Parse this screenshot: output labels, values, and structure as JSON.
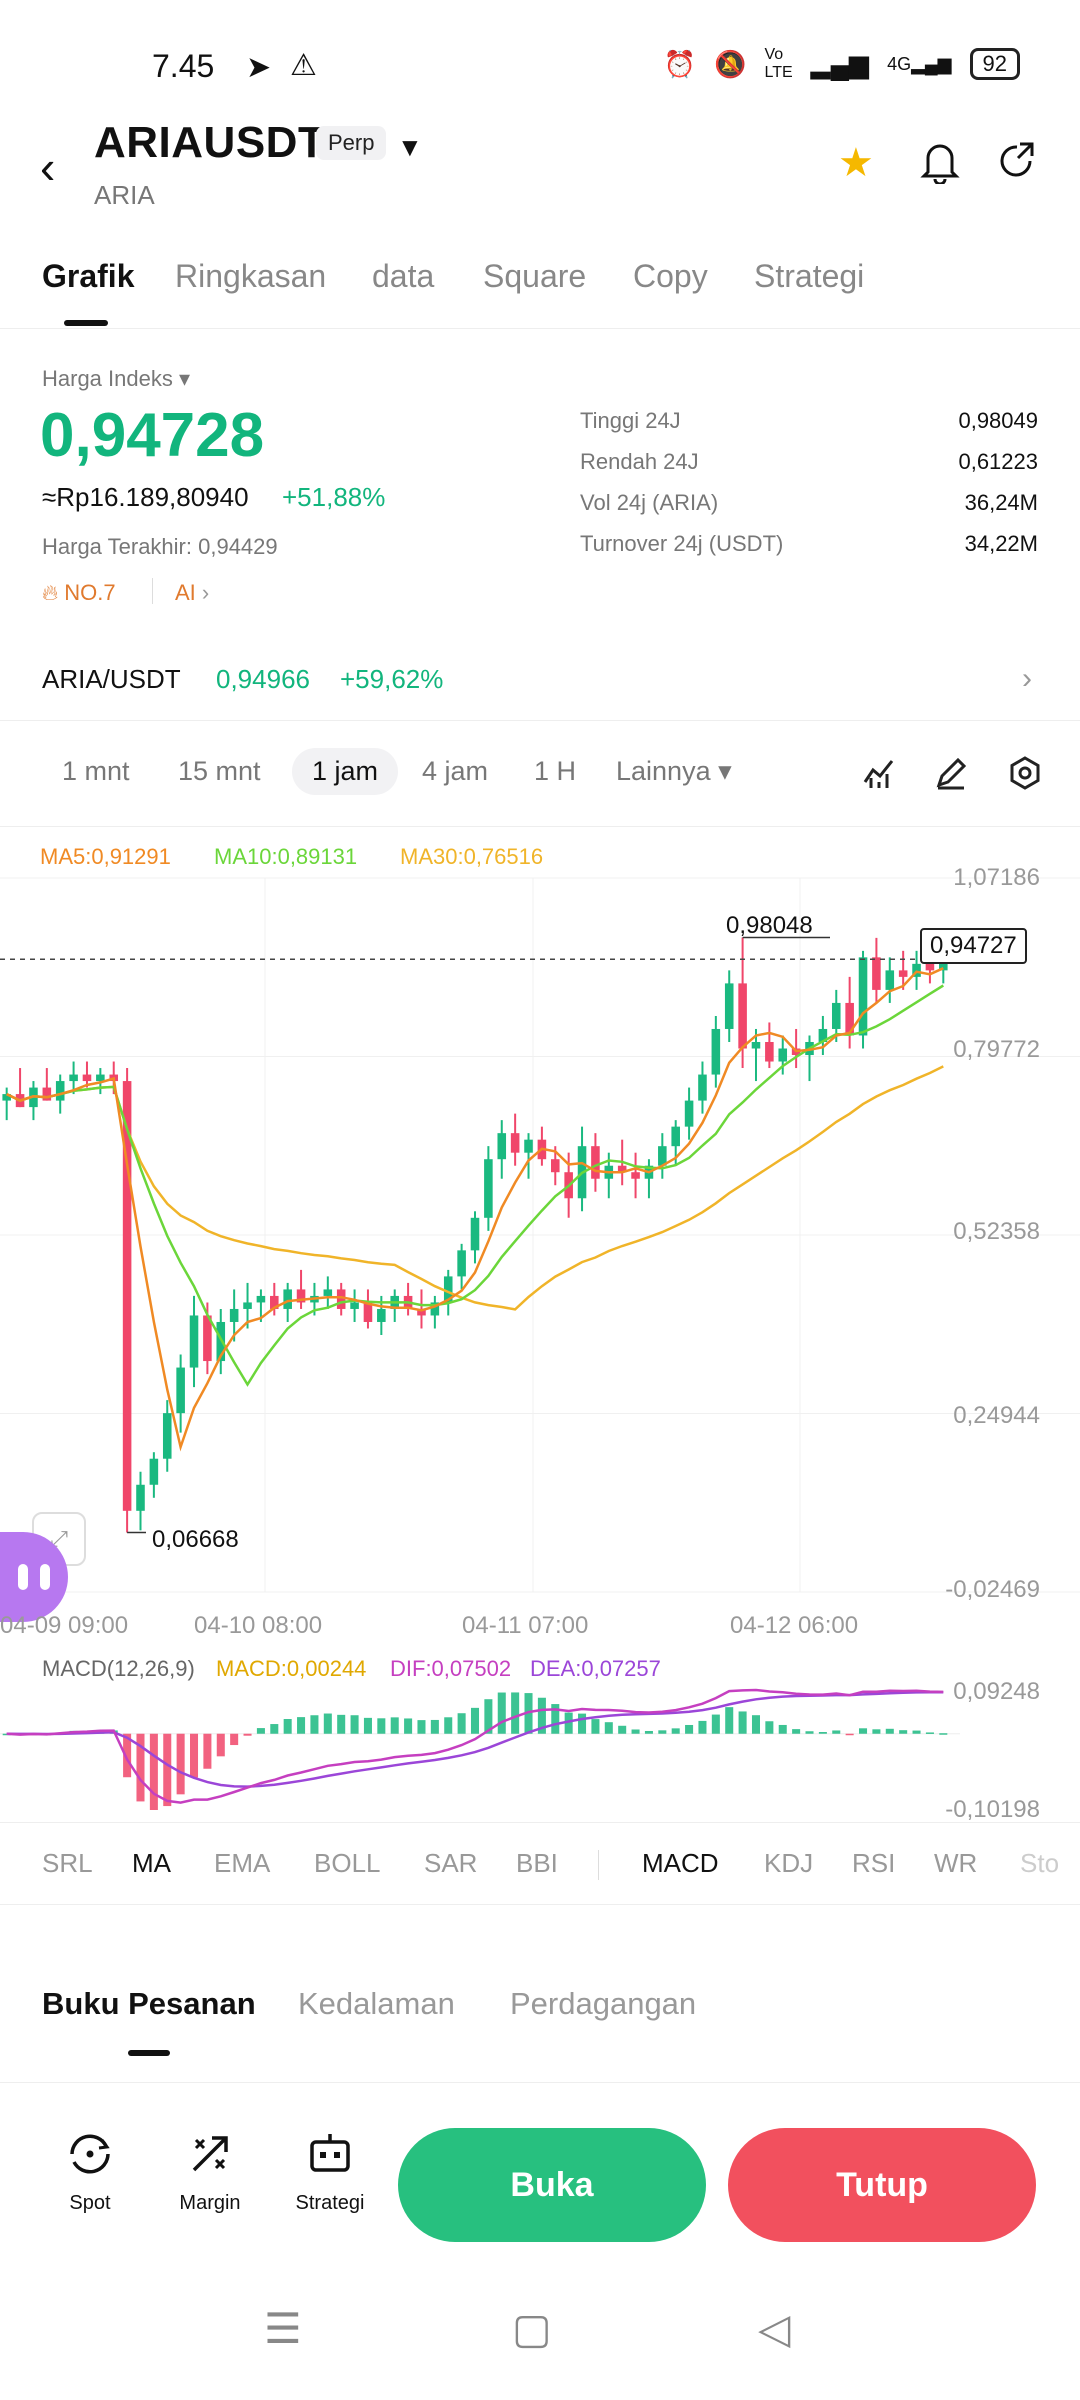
{
  "status_bar": {
    "time": "7.45",
    "battery": "92"
  },
  "header": {
    "symbol": "ARIAUSDT",
    "contract_type": "Perp",
    "base": "ARIA"
  },
  "tabs": [
    "Grafik",
    "Ringkasan",
    "data",
    "Square",
    "Copy",
    "Strategi"
  ],
  "price": {
    "label": "Harga Indeks",
    "value": "0,94728",
    "approx_idr": "≈Rp16.189,80940",
    "change_pct": "+51,88%",
    "last_price": "Harga Terakhir: 0,94429",
    "rank": "NO.7",
    "ai": "AI"
  },
  "stats": [
    {
      "label": "Tinggi 24J",
      "value": "0,98049"
    },
    {
      "label": "Rendah 24J",
      "value": "0,61223"
    },
    {
      "label": "Vol 24j (ARIA)",
      "value": "36,24M"
    },
    {
      "label": "Turnover 24j (USDT)",
      "value": "34,22M"
    }
  ],
  "spot_pair": {
    "pair": "ARIA/USDT",
    "price": "0,94966",
    "change": "+59,62%"
  },
  "timeframes": [
    "1 mnt",
    "15 mnt",
    "1 jam",
    "4 jam",
    "1 H",
    "Lainnya"
  ],
  "active_timeframe": "1 jam",
  "ma_legend": {
    "ma5": "MA5:0,91291",
    "ma10": "MA10:0,89131",
    "ma30": "MA30:0,76516"
  },
  "colors": {
    "up": "#1ab980",
    "down": "#f0466a",
    "ma5": "#f08a24",
    "ma10": "#6bd63a",
    "ma30": "#f0b429",
    "dif": "#c53fc0",
    "dea": "#9b46d8"
  },
  "chart_data": {
    "type": "candlestick",
    "x_ticks": [
      "04-09 09:00",
      "04-10 08:00",
      "04-11 07:00",
      "04-12 06:00"
    ],
    "y_ticks": [
      "1,07186",
      "0,79772",
      "0,52358",
      "0,24944",
      "-0,02469"
    ],
    "ylim": [
      -0.02469,
      1.07186
    ],
    "current_price_label": "0,94727",
    "high_label": "0,98048",
    "low_label": "0,06668",
    "candles": [
      [
        0.73,
        0.75,
        0.7,
        0.74
      ],
      [
        0.74,
        0.78,
        0.72,
        0.72
      ],
      [
        0.72,
        0.76,
        0.7,
        0.75
      ],
      [
        0.75,
        0.78,
        0.73,
        0.73
      ],
      [
        0.73,
        0.77,
        0.71,
        0.76
      ],
      [
        0.76,
        0.79,
        0.74,
        0.77
      ],
      [
        0.77,
        0.79,
        0.75,
        0.76
      ],
      [
        0.76,
        0.78,
        0.74,
        0.77
      ],
      [
        0.77,
        0.79,
        0.74,
        0.76
      ],
      [
        0.76,
        0.78,
        0.06668,
        0.1
      ],
      [
        0.1,
        0.16,
        0.07,
        0.14
      ],
      [
        0.14,
        0.19,
        0.12,
        0.18
      ],
      [
        0.18,
        0.27,
        0.16,
        0.25
      ],
      [
        0.25,
        0.34,
        0.22,
        0.32
      ],
      [
        0.32,
        0.43,
        0.29,
        0.4
      ],
      [
        0.4,
        0.42,
        0.31,
        0.33
      ],
      [
        0.33,
        0.41,
        0.31,
        0.39
      ],
      [
        0.39,
        0.44,
        0.36,
        0.41
      ],
      [
        0.41,
        0.45,
        0.38,
        0.42
      ],
      [
        0.42,
        0.44,
        0.39,
        0.43
      ],
      [
        0.43,
        0.45,
        0.4,
        0.41
      ],
      [
        0.41,
        0.45,
        0.39,
        0.44
      ],
      [
        0.44,
        0.47,
        0.41,
        0.42
      ],
      [
        0.42,
        0.45,
        0.4,
        0.43
      ],
      [
        0.43,
        0.46,
        0.41,
        0.44
      ],
      [
        0.44,
        0.45,
        0.4,
        0.41
      ],
      [
        0.41,
        0.44,
        0.39,
        0.42
      ],
      [
        0.42,
        0.44,
        0.38,
        0.39
      ],
      [
        0.39,
        0.43,
        0.37,
        0.41
      ],
      [
        0.41,
        0.44,
        0.39,
        0.43
      ],
      [
        0.43,
        0.45,
        0.4,
        0.41
      ],
      [
        0.41,
        0.44,
        0.38,
        0.4
      ],
      [
        0.4,
        0.43,
        0.38,
        0.42
      ],
      [
        0.42,
        0.47,
        0.4,
        0.46
      ],
      [
        0.46,
        0.51,
        0.44,
        0.5
      ],
      [
        0.5,
        0.56,
        0.48,
        0.55
      ],
      [
        0.55,
        0.66,
        0.53,
        0.64
      ],
      [
        0.64,
        0.7,
        0.61,
        0.68
      ],
      [
        0.68,
        0.71,
        0.63,
        0.65
      ],
      [
        0.65,
        0.68,
        0.61,
        0.67
      ],
      [
        0.67,
        0.69,
        0.63,
        0.64
      ],
      [
        0.64,
        0.66,
        0.6,
        0.62
      ],
      [
        0.62,
        0.65,
        0.55,
        0.58
      ],
      [
        0.58,
        0.69,
        0.56,
        0.66
      ],
      [
        0.66,
        0.68,
        0.59,
        0.61
      ],
      [
        0.61,
        0.65,
        0.58,
        0.63
      ],
      [
        0.63,
        0.67,
        0.6,
        0.62
      ],
      [
        0.62,
        0.65,
        0.58,
        0.61
      ],
      [
        0.61,
        0.64,
        0.58,
        0.63
      ],
      [
        0.63,
        0.68,
        0.61,
        0.66
      ],
      [
        0.66,
        0.7,
        0.63,
        0.69
      ],
      [
        0.69,
        0.75,
        0.67,
        0.73
      ],
      [
        0.73,
        0.79,
        0.71,
        0.77
      ],
      [
        0.77,
        0.86,
        0.75,
        0.84
      ],
      [
        0.84,
        0.93,
        0.82,
        0.91
      ],
      [
        0.91,
        0.98048,
        0.78,
        0.81
      ],
      [
        0.81,
        0.84,
        0.76,
        0.82
      ],
      [
        0.82,
        0.85,
        0.78,
        0.79
      ],
      [
        0.79,
        0.83,
        0.77,
        0.81
      ],
      [
        0.81,
        0.84,
        0.78,
        0.8
      ],
      [
        0.8,
        0.83,
        0.76,
        0.82
      ],
      [
        0.82,
        0.86,
        0.8,
        0.84
      ],
      [
        0.84,
        0.9,
        0.82,
        0.88
      ],
      [
        0.88,
        0.92,
        0.81,
        0.83
      ],
      [
        0.83,
        0.96,
        0.81,
        0.95
      ],
      [
        0.95,
        0.98,
        0.88,
        0.9
      ],
      [
        0.9,
        0.95,
        0.88,
        0.93
      ],
      [
        0.93,
        0.96,
        0.9,
        0.92
      ],
      [
        0.92,
        0.96,
        0.9,
        0.94
      ],
      [
        0.94,
        0.95,
        0.91,
        0.93
      ],
      [
        0.93,
        0.96,
        0.91,
        0.947
      ]
    ],
    "macd_legend": {
      "params": "MACD(12,26,9)",
      "macd": "MACD:0,00244",
      "dif": "DIF:0,07502",
      "dea": "DEA:0,07257"
    },
    "macd_y_ticks": [
      "0,09248",
      "-0,10198"
    ]
  },
  "indicators_main": [
    "SRL",
    "MA",
    "EMA",
    "BOLL",
    "SAR",
    "BBI"
  ],
  "indicators_sub": [
    "MACD",
    "KDJ",
    "RSI",
    "WR",
    "Sto"
  ],
  "book_tabs": [
    "Buku Pesanan",
    "Kedalaman",
    "Perdagangan"
  ],
  "footer": {
    "spot": "Spot",
    "margin": "Margin",
    "strategi": "Strategi",
    "buy": "Buka",
    "sell": "Tutup"
  }
}
